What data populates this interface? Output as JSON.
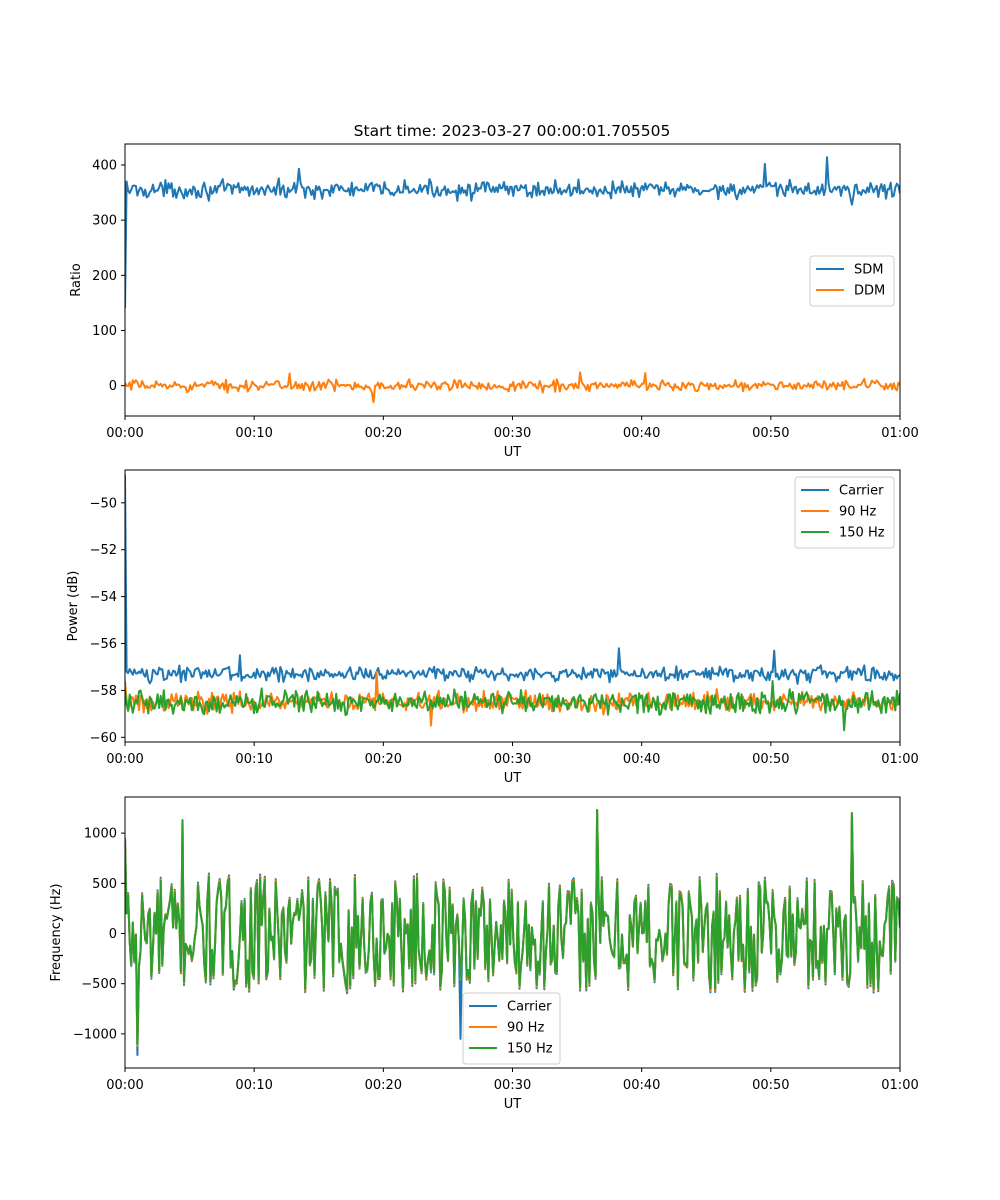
{
  "colors": {
    "blue": "#1f77b4",
    "orange": "#ff7f0e",
    "green": "#2ca02c"
  },
  "chart_data": [
    {
      "type": "line",
      "title": "Start time: 2023-03-27 00:00:01.705505",
      "xlabel": "UT",
      "ylabel": "Ratio",
      "x_range_minutes": [
        0,
        60
      ],
      "xticklabels": [
        "00:00",
        "00:10",
        "00:20",
        "00:30",
        "00:40",
        "00:50",
        "01:00"
      ],
      "ylim": [
        -55,
        438
      ],
      "yticks": [
        0,
        100,
        200,
        300,
        400
      ],
      "yticklabels": [
        "0",
        "100",
        "200",
        "300",
        "400"
      ],
      "grid": false,
      "legend_position": "center-right",
      "series": [
        {
          "name": "SDM",
          "color": "#1f77b4",
          "base": 355,
          "amp": 14,
          "start": [
            140,
            370
          ],
          "spikes": [
            [
              13.5,
              393
            ],
            [
              49.5,
              402
            ],
            [
              54.4,
              414
            ],
            [
              56.3,
              328
            ]
          ]
        },
        {
          "name": "DDM",
          "color": "#ff7f0e",
          "base": 0,
          "amp": 9,
          "start": [
            5,
            0
          ],
          "spikes": [
            [
              19.2,
              -30
            ],
            [
              35.2,
              24
            ],
            [
              40.3,
              23
            ],
            [
              12.7,
              22
            ]
          ]
        }
      ]
    },
    {
      "type": "line",
      "title": "",
      "xlabel": "UT",
      "ylabel": "Power (dB)",
      "x_range_minutes": [
        0,
        60
      ],
      "xticklabels": [
        "00:00",
        "00:10",
        "00:20",
        "00:30",
        "00:40",
        "00:50",
        "01:00"
      ],
      "ylim": [
        -60.2,
        -48.6
      ],
      "yticks": [
        -60,
        -58,
        -56,
        -54,
        -52,
        -50
      ],
      "yticklabels": [
        "−60",
        "−58",
        "−56",
        "−54",
        "−52",
        "−50"
      ],
      "grid": false,
      "legend_position": "top-right",
      "series": [
        {
          "name": "Carrier",
          "color": "#1f77b4",
          "base": -57.3,
          "amp": 0.28,
          "start": [
            -48.8,
            -57.2
          ],
          "spikes": [
            [
              38.2,
              -56.2
            ],
            [
              50.3,
              -56.3
            ],
            [
              8.9,
              -56.5
            ]
          ]
        },
        {
          "name": "90 Hz",
          "color": "#ff7f0e",
          "base": -58.5,
          "amp": 0.4,
          "start": [
            -57.6,
            -58.4
          ],
          "spikes": [
            [
              19.5,
              -57.2
            ],
            [
              23.7,
              -59.5
            ]
          ]
        },
        {
          "name": "150 Hz",
          "color": "#2ca02c",
          "base": -58.5,
          "amp": 0.42,
          "start": [
            -58.0,
            -58.6
          ],
          "spikes": [
            [
              55.7,
              -59.7
            ],
            [
              50.2,
              -57.6
            ]
          ]
        }
      ]
    },
    {
      "type": "line",
      "title": "",
      "xlabel": "UT",
      "ylabel": "Frequency (Hz)",
      "x_range_minutes": [
        0,
        60
      ],
      "xticklabels": [
        "00:00",
        "00:10",
        "00:20",
        "00:30",
        "00:40",
        "00:50",
        "01:00"
      ],
      "ylim": [
        -1340,
        1360
      ],
      "yticks": [
        -1000,
        -500,
        0,
        500,
        1000
      ],
      "yticklabels": [
        "−1000",
        "−500",
        "0",
        "500",
        "1000"
      ],
      "grid": false,
      "legend_position": "lower-center",
      "series": [
        {
          "name": "Carrier",
          "color": "#1f77b4",
          "base": 0,
          "amp": 430,
          "start": [
            950,
            200
          ],
          "spikes": [
            [
              1.0,
              -1210
            ],
            [
              36.5,
              1230
            ],
            [
              4.5,
              1130
            ],
            [
              56.3,
              1200
            ],
            [
              26.0,
              -1050
            ]
          ]
        },
        {
          "name": "90 Hz",
          "color": "#ff7f0e",
          "base": 0,
          "amp": 430,
          "start": [
            950,
            200
          ],
          "spikes": [
            [
              1.0,
              -1120
            ],
            [
              36.5,
              1230
            ],
            [
              4.5,
              1130
            ],
            [
              56.3,
              1200
            ]
          ]
        },
        {
          "name": "150 Hz",
          "color": "#2ca02c",
          "base": 0,
          "amp": 430,
          "start": [
            950,
            200
          ],
          "spikes": [
            [
              1.0,
              -1100
            ],
            [
              36.5,
              1230
            ],
            [
              4.5,
              1130
            ],
            [
              56.3,
              1200
            ]
          ]
        }
      ]
    }
  ]
}
